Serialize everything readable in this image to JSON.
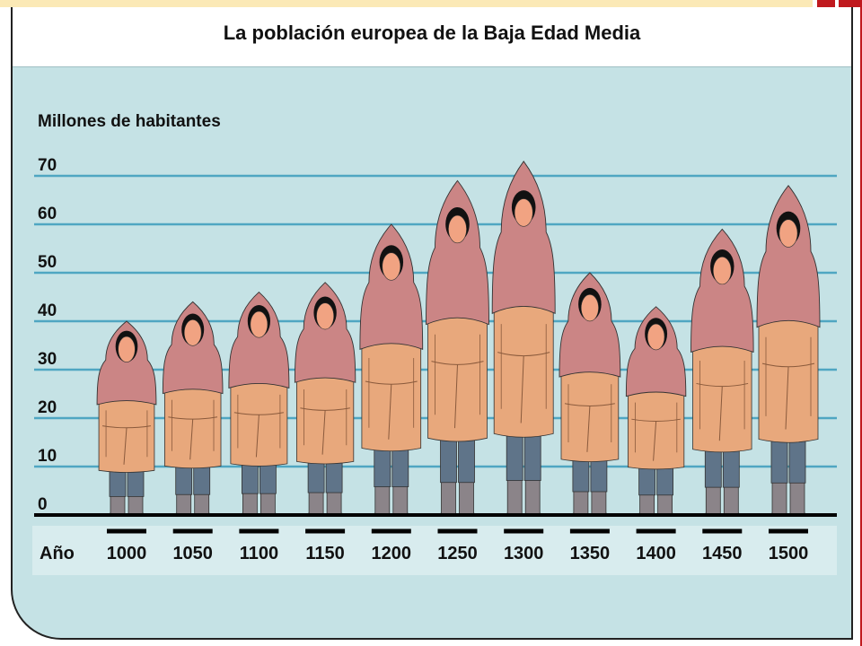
{
  "colors": {
    "background": "#c5e2e5",
    "gridline": "#4fa6c2",
    "hood": "#cb8585",
    "robe": "#e8a87c",
    "legs": "#5f7489",
    "boots": "#8b8489",
    "face": "#f1a382",
    "hair": "#111111",
    "year_panel": "#d8ecee"
  },
  "chart_data": {
    "type": "bar",
    "title": "La población europea de la Baja Edad Media",
    "ylabel": "Millones de habitantes",
    "xlabel": "Año",
    "ylim": [
      0,
      70
    ],
    "yticks": [
      "0",
      "10",
      "20",
      "30",
      "40",
      "50",
      "60",
      "70"
    ],
    "grid": true,
    "categories": [
      "1000",
      "1050",
      "1100",
      "1150",
      "1200",
      "1250",
      "1300",
      "1350",
      "1400",
      "1450",
      "1500"
    ],
    "values": [
      40,
      44,
      46,
      48,
      60,
      69,
      73,
      50,
      43,
      59,
      68
    ],
    "mark_style": "pictogram-hooded-figure"
  }
}
